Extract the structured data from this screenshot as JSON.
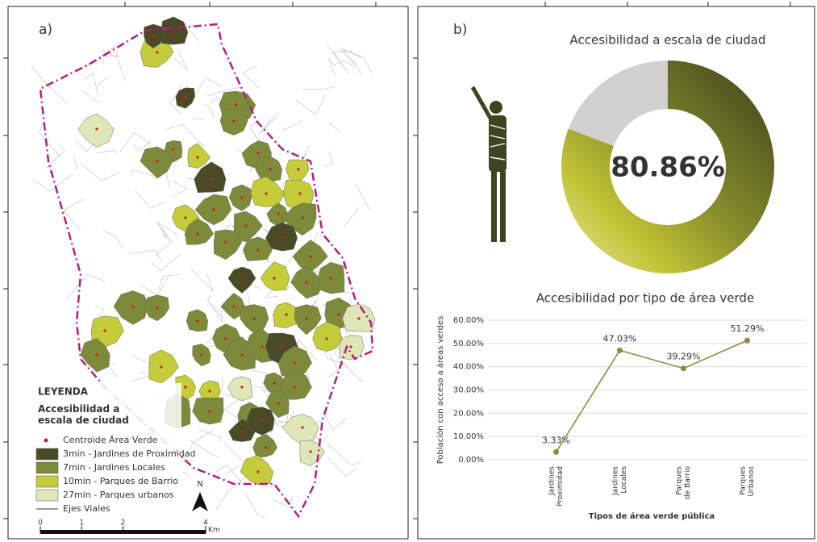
{
  "map": {
    "label": "a)",
    "legend": {
      "title": "LEYENDA",
      "subtitle": "Accesibilidad a\nescala de ciudad",
      "items": [
        {
          "label": "Centroide Área Verde",
          "color": "#cc1f1f"
        },
        {
          "label": "3min - Jardines de Proximidad",
          "color": "#4a4a26"
        },
        {
          "label": "7min - Jardines Locales",
          "color": "#7d8a3a"
        },
        {
          "label": "10min - Parques de Barrio",
          "color": "#c4cc3a"
        },
        {
          "label": "27min - Parques urbanos",
          "color": "#dfe6b8"
        },
        {
          "label": "Ejes Viales",
          "color": "#333333"
        }
      ]
    },
    "north": "N",
    "scale": {
      "ticks": [
        0,
        1,
        2,
        4
      ],
      "unit": "Km"
    }
  },
  "panel_b_label": "b)",
  "chart_data": [
    {
      "type": "donut",
      "title": "Accesibilidad a escala de ciudad",
      "categories": [
        null,
        null
      ],
      "values": [
        80.86,
        19.14
      ],
      "value_labels": [
        "80.86%",
        null
      ],
      "colors": [
        "#454a20",
        "#d0d0d0"
      ]
    },
    {
      "type": "line",
      "title": "Accesibilidad por tipo de área verde",
      "categories": [
        "Jardines\nProximidad",
        "Jardines\nLocales",
        "Parques\nde Barrio",
        "Parques\nUrbanos"
      ],
      "values": [
        3.33,
        47.03,
        39.29,
        51.29
      ],
      "value_labels": [
        "3.33%",
        "47.03%",
        "39.29%",
        "51.29%"
      ],
      "color": "#8c8c3c",
      "xlabel": "Tipos de área verde pública",
      "ylabel": "Población con acceso a áreas verdes",
      "ylim": [
        0,
        60
      ],
      "yticks": [
        {
          "value": 0,
          "label": "0.00%"
        },
        {
          "value": 10,
          "label": "10.00%"
        },
        {
          "value": 20,
          "label": "20.00%"
        },
        {
          "value": 30,
          "label": "30.00%"
        },
        {
          "value": 40,
          "label": "40.00%"
        },
        {
          "value": 50,
          "label": "50.00%"
        },
        {
          "value": 60,
          "label": "60.00%"
        }
      ],
      "grid": true
    }
  ]
}
